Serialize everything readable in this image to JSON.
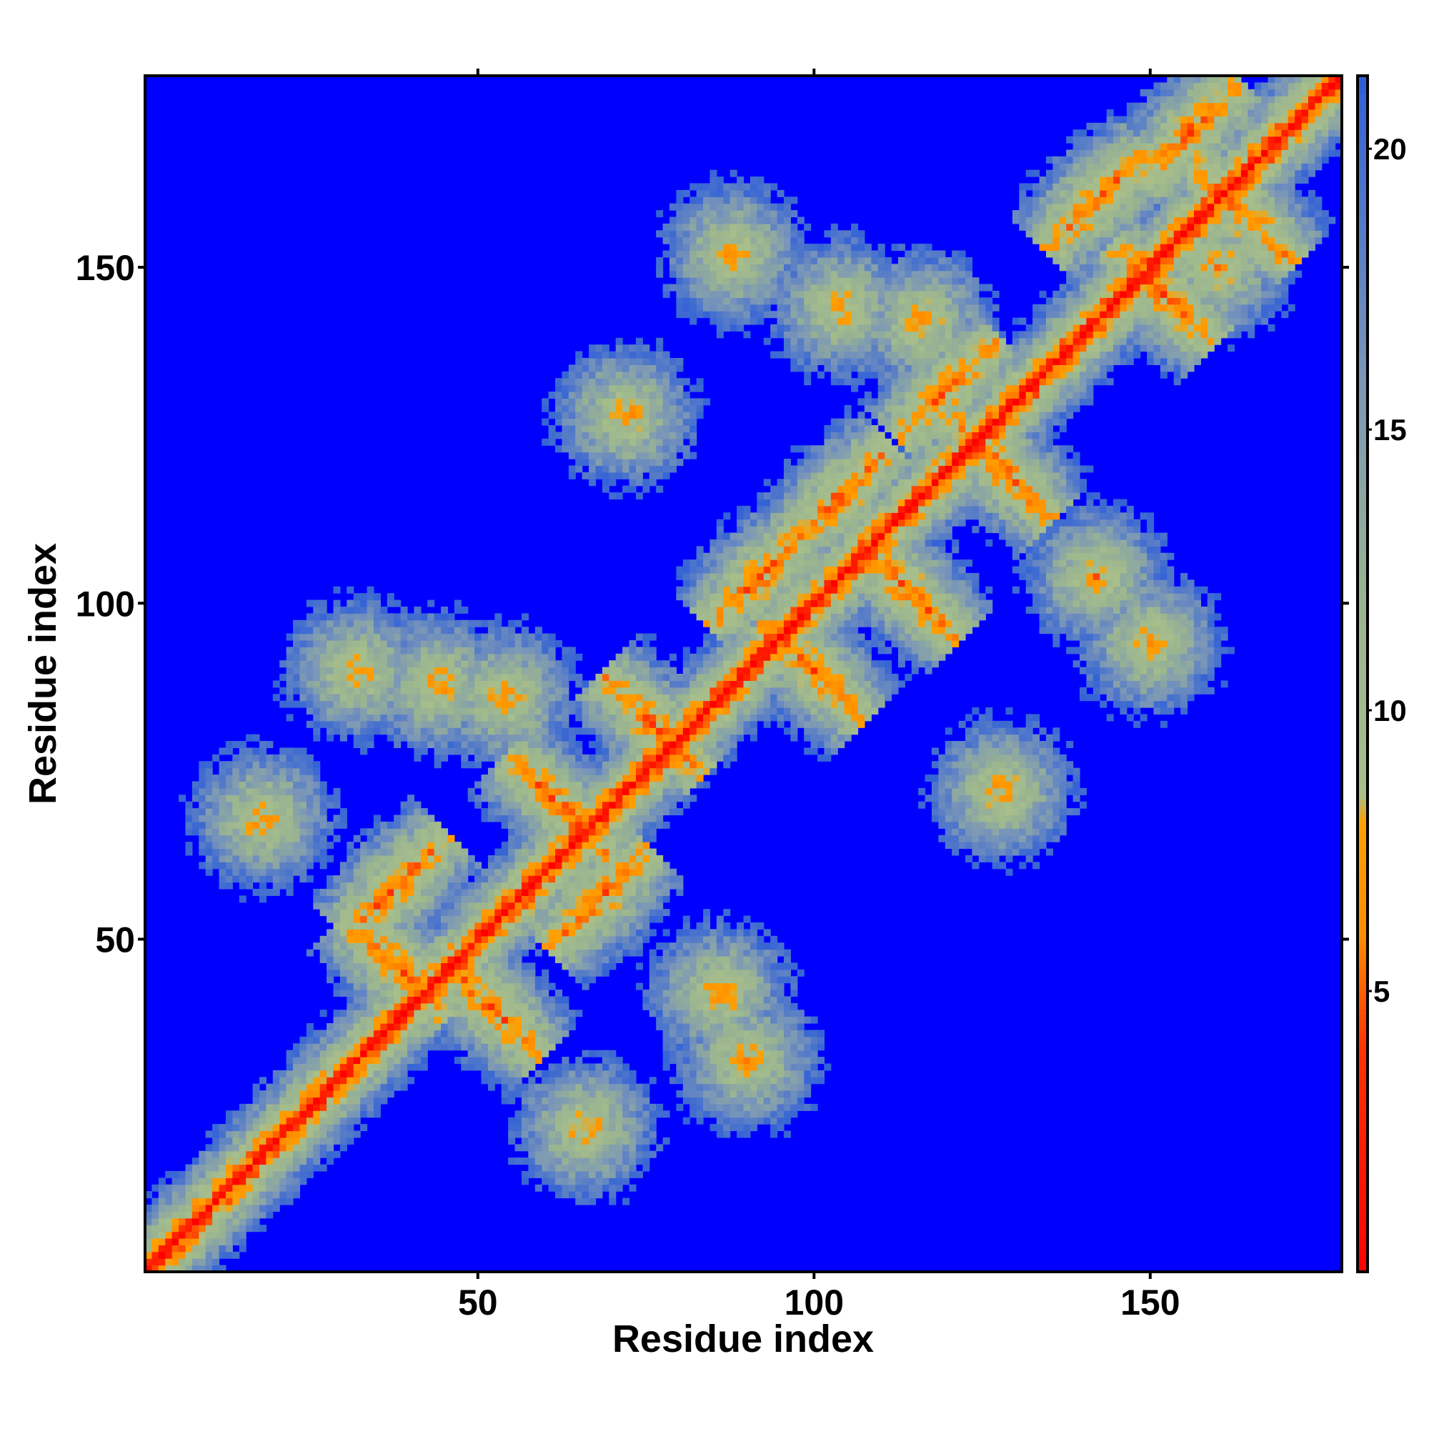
{
  "chart_data": {
    "type": "heatmap",
    "title": "",
    "xlabel": "Residue index",
    "ylabel": "Residue index",
    "n_residues": 178,
    "xlim": [
      0.5,
      178.5
    ],
    "ylim": [
      0.5,
      178.5
    ],
    "x_ticks": [
      50,
      100,
      150
    ],
    "y_ticks": [
      50,
      100,
      150
    ],
    "x_tick_labels": [
      "50",
      "100",
      "150"
    ],
    "y_tick_labels": [
      "50",
      "100",
      "150"
    ],
    "colorbar": {
      "range": [
        0,
        21.3
      ],
      "ticks": [
        5,
        10,
        15,
        20
      ],
      "tick_labels": [
        "5",
        "10",
        "15",
        "20"
      ],
      "stops": [
        {
          "value": 0,
          "color": "#ff0000"
        },
        {
          "value": 4,
          "color": "#ff3300"
        },
        {
          "value": 6,
          "color": "#ff8c00"
        },
        {
          "value": 8,
          "color": "#ffa000"
        },
        {
          "value": 8.5,
          "color": "#a8bf8a"
        },
        {
          "value": 12,
          "color": "#9ab491"
        },
        {
          "value": 16,
          "color": "#7a96b8"
        },
        {
          "value": 21.3,
          "color": "#3060d8"
        }
      ],
      "background_color": "#0000ff",
      "cutoff": 21
    },
    "contact_features": {
      "diagonal": {
        "from": 1,
        "to": 178
      },
      "helix_segments": [
        [
          8,
          20
        ],
        [
          28,
          44
        ],
        [
          52,
          66
        ],
        [
          74,
          86
        ],
        [
          96,
          112
        ],
        [
          120,
          132
        ],
        [
          140,
          152
        ],
        [
          160,
          172
        ]
      ],
      "crossings": [
        {
          "x": 38,
          "y": 46,
          "type": "anti"
        },
        {
          "x": 38,
          "y": 58,
          "type": "par"
        },
        {
          "x": 52,
          "y": 40,
          "type": "anti"
        },
        {
          "x": 62,
          "y": 70,
          "type": "anti"
        },
        {
          "x": 68,
          "y": 56,
          "type": "par"
        },
        {
          "x": 76,
          "y": 82,
          "type": "anti"
        },
        {
          "x": 92,
          "y": 104,
          "type": "par"
        },
        {
          "x": 100,
          "y": 90,
          "type": "anti"
        },
        {
          "x": 104,
          "y": 116,
          "type": "par"
        },
        {
          "x": 114,
          "y": 102,
          "type": "anti"
        },
        {
          "x": 120,
          "y": 132,
          "type": "par"
        },
        {
          "x": 128,
          "y": 120,
          "type": "anti"
        },
        {
          "x": 142,
          "y": 160,
          "type": "par"
        },
        {
          "x": 152,
          "y": 146,
          "type": "anti"
        },
        {
          "x": 156,
          "y": 170,
          "type": "par"
        },
        {
          "x": 164,
          "y": 158,
          "type": "anti"
        }
      ],
      "hotspots": [
        {
          "x": 18,
          "y": 68
        },
        {
          "x": 32,
          "y": 90
        },
        {
          "x": 44,
          "y": 88
        },
        {
          "x": 54,
          "y": 86
        },
        {
          "x": 66,
          "y": 22
        },
        {
          "x": 72,
          "y": 128
        },
        {
          "x": 86,
          "y": 42
        },
        {
          "x": 88,
          "y": 152
        },
        {
          "x": 90,
          "y": 32
        },
        {
          "x": 104,
          "y": 144
        },
        {
          "x": 116,
          "y": 142
        },
        {
          "x": 128,
          "y": 72
        },
        {
          "x": 142,
          "y": 104
        },
        {
          "x": 150,
          "y": 94
        },
        {
          "x": 160,
          "y": 150
        }
      ]
    }
  }
}
